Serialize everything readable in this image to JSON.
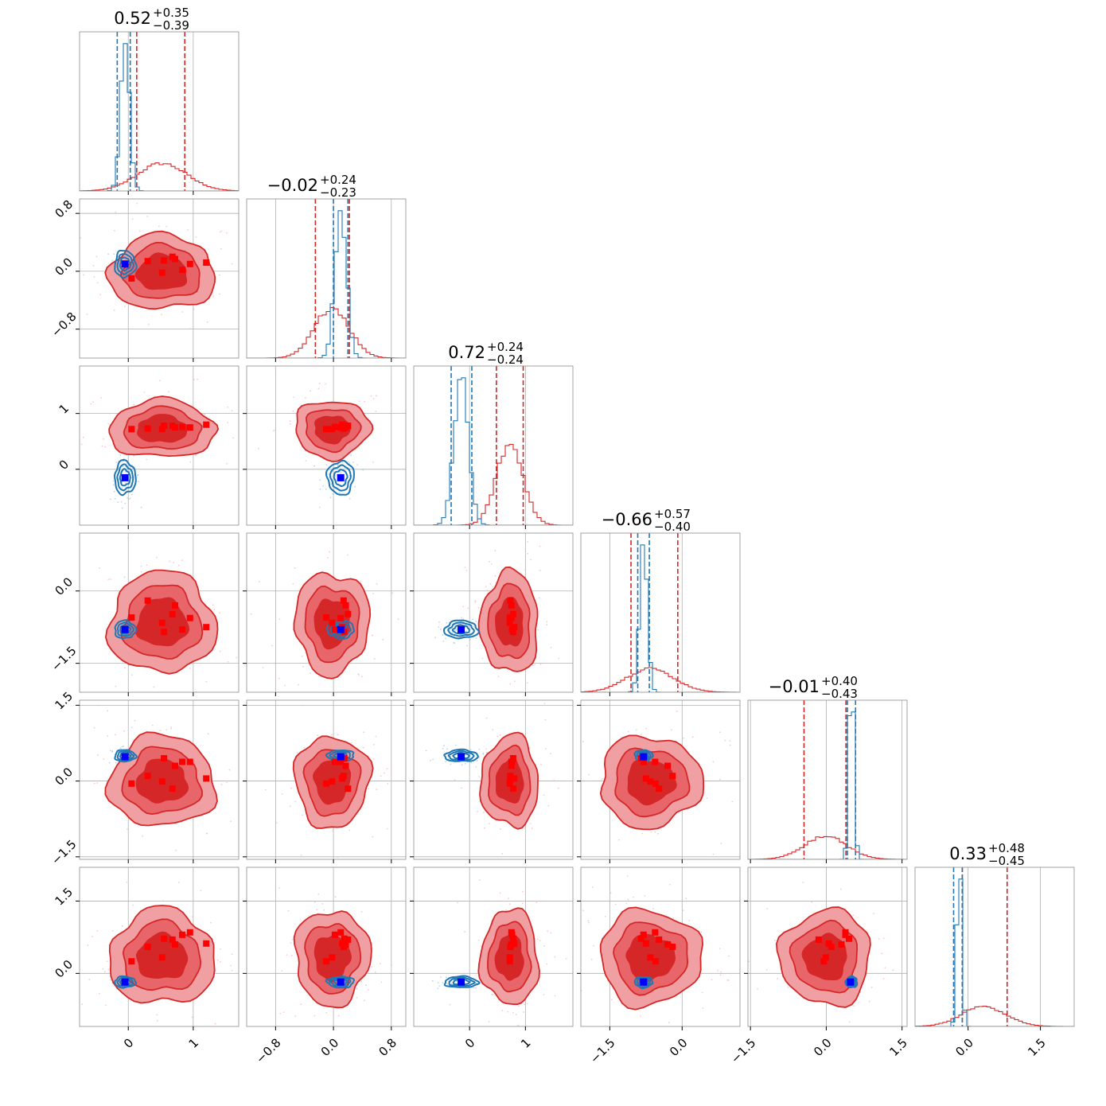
{
  "colors": {
    "red": "#d62728",
    "blue": "#1f77b4",
    "red_fill_outer": "#f0a0a3",
    "red_fill_mid": "#e8656a",
    "red_fill_inner": "#d62728",
    "blue_marker": "#0000ff",
    "red_marker": "#ff0000"
  },
  "chart_data": {
    "type": "corner",
    "n_params": 6,
    "params": [
      {
        "range": [
          -0.75,
          1.7
        ],
        "ticks": [
          0,
          1
        ],
        "tick_labels": [
          "0",
          "1"
        ],
        "title": {
          "value": "0.52",
          "plus": "+0.35",
          "minus": "−0.39"
        },
        "red": {
          "mu": 0.52,
          "sigma": 0.38,
          "quantiles": [
            0.13,
            0.87
          ]
        },
        "blue": {
          "mu": -0.05,
          "sigma": 0.07,
          "quantiles": [
            -0.17,
            0.03
          ]
        }
      },
      {
        "range": [
          -1.2,
          1.0
        ],
        "ticks": [
          -0.8,
          0.0,
          0.8
        ],
        "tick_labels": [
          "−0.8",
          "0.0",
          "0.8"
        ],
        "title": {
          "value": "−0.02",
          "plus": "+0.24",
          "minus": "−0.23"
        },
        "red": {
          "mu": -0.02,
          "sigma": 0.24,
          "quantiles": [
            -0.25,
            0.22
          ]
        },
        "blue": {
          "mu": 0.1,
          "sigma": 0.08,
          "quantiles": [
            0.0,
            0.2
          ]
        }
      },
      {
        "range": [
          -1.0,
          1.85
        ],
        "ticks": [
          0,
          1
        ],
        "tick_labels": [
          "0",
          "1"
        ],
        "title": {
          "value": "0.72",
          "plus": "+0.24",
          "minus": "−0.24"
        },
        "red": {
          "mu": 0.72,
          "sigma": 0.24,
          "quantiles": [
            0.48,
            0.96
          ]
        },
        "blue": {
          "mu": -0.15,
          "sigma": 0.13,
          "quantiles": [
            -0.33,
            0.04
          ]
        }
      },
      {
        "range": [
          -2.1,
          1.2
        ],
        "ticks": [
          -1.5,
          0.0
        ],
        "tick_labels": [
          "−1.5",
          "0.0"
        ],
        "title": {
          "value": "−0.66",
          "plus": "+0.57",
          "minus": "−0.40"
        },
        "red": {
          "mu": -0.66,
          "sigma": 0.49,
          "quantiles": [
            -1.06,
            -0.09
          ]
        },
        "blue": {
          "mu": -0.8,
          "sigma": 0.08,
          "quantiles": [
            -0.92,
            -0.68
          ]
        }
      },
      {
        "range": [
          -1.55,
          1.6
        ],
        "ticks": [
          -1.5,
          0.0,
          1.5
        ],
        "tick_labels": [
          "−1.5",
          "0.0",
          "1.5"
        ],
        "title": {
          "value": "−0.01",
          "plus": "+0.40",
          "minus": "−0.43"
        },
        "red": {
          "mu": -0.01,
          "sigma": 0.42,
          "quantiles": [
            -0.44,
            0.39
          ]
        },
        "blue": {
          "mu": 0.5,
          "sigma": 0.05,
          "quantiles": [
            0.42,
            0.58
          ]
        }
      },
      {
        "range": [
          -1.1,
          2.2
        ],
        "ticks": [
          0.0,
          1.5
        ],
        "tick_labels": [
          "0.0",
          "1.5"
        ],
        "title": {
          "value": "0.33",
          "plus": "+0.48",
          "minus": "−0.45"
        },
        "red": {
          "mu": 0.33,
          "sigma": 0.46,
          "quantiles": [
            -0.12,
            0.81
          ]
        },
        "blue": {
          "mu": -0.18,
          "sigma": 0.05,
          "quantiles": [
            -0.3,
            -0.12
          ]
        }
      }
    ],
    "red_markers": [
      [
        0.52,
        0.72,
        0.3,
        0.05,
        0.83,
        0.55,
        0.95,
        1.2,
        0.68
      ],
      [
        -0.02,
        0.17,
        0.14,
        -0.1,
        0.02,
        0.15,
        0.1,
        0.12,
        0.2
      ],
      [
        0.72,
        0.75,
        0.73,
        0.72,
        0.76,
        0.78,
        0.75,
        0.8,
        0.78
      ],
      [
        -0.66,
        -0.3,
        -0.2,
        -0.55,
        -0.8,
        -0.85,
        -0.56,
        -0.75,
        -0.48
      ],
      [
        -0.01,
        0.3,
        0.1,
        -0.05,
        0.38,
        0.45,
        0.38,
        0.05,
        -0.15
      ],
      [
        0.33,
        0.6,
        0.55,
        0.25,
        0.8,
        0.72,
        0.85,
        0.62,
        0.7
      ]
    ],
    "blue_marker": [
      -0.05,
      0.1,
      -0.15,
      -0.8,
      0.48,
      -0.18
    ]
  }
}
